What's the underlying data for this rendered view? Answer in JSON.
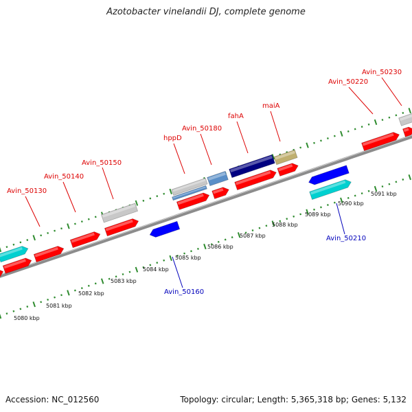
{
  "title": "Azotobacter vinelandii DJ, complete genome",
  "accession": "Accession: NC_012560",
  "topology": "Topology: circular; Length: 5,365,318 bp; Genes: 5,132",
  "colors": {
    "backbone": "#8c8c8c",
    "tick": "#2e8b2e",
    "fwd_label": "#dd0000",
    "rev_label": "#0000bb",
    "red": "#ff0000",
    "gray": "#c8c8c8",
    "cyan": "#00d0d0",
    "blue": "#0000ff",
    "navy": "#000080",
    "steel": "#5a8fc8",
    "khaki": "#c0b070"
  },
  "kbp_labels": [
    "5080 kbp",
    "5081 kbp",
    "5082 kbp",
    "5083 kbp",
    "5084 kbp",
    "5085 kbp",
    "5086 kbp",
    "5087 kbp",
    "5088 kbp",
    "5089 kbp",
    "5090 kbp",
    "5091 kbp"
  ],
  "forward_labels": [
    "Avin_50130",
    "Avin_50140",
    "Avin_50150",
    "hppD",
    "Avin_50180",
    "fahA",
    "maiA",
    "Avin_50220",
    "Avin_50230"
  ],
  "reverse_labels": [
    "Avin_50160",
    "Avin_50210"
  ]
}
